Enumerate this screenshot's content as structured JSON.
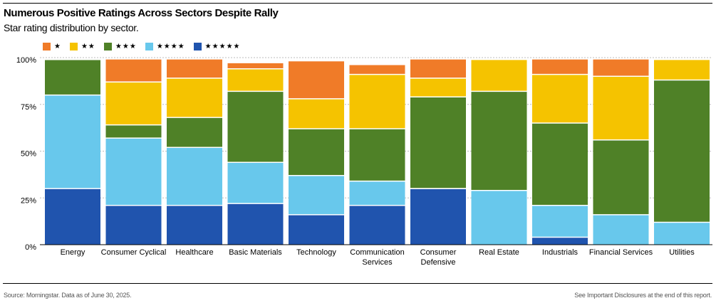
{
  "chart_data": {
    "type": "bar",
    "stacked": true,
    "title": "Numerous Positive Ratings Across Sectors Despite Rally",
    "subtitle": "Star rating distribution by sector.",
    "categories": [
      [
        "Energy"
      ],
      [
        "Consumer Cyclical"
      ],
      [
        "Healthcare"
      ],
      [
        "Basic Materials"
      ],
      [
        "Technology"
      ],
      [
        "Communication",
        "Services"
      ],
      [
        "Consumer",
        "Defensive"
      ],
      [
        "Real Estate"
      ],
      [
        "Industrials"
      ],
      [
        "Financial Services"
      ],
      [
        "Utilities"
      ]
    ],
    "series": [
      {
        "name": "★★★★★",
        "color": "#2054ae",
        "values": [
          30,
          21,
          21,
          22,
          16,
          21,
          30,
          0,
          4,
          0,
          0
        ]
      },
      {
        "name": "★★★★",
        "color": "#68c8ec",
        "values": [
          50,
          36,
          31,
          22,
          21,
          13,
          0,
          29,
          17,
          16,
          12
        ]
      },
      {
        "name": "★★★",
        "color": "#4f8127",
        "values": [
          19,
          7,
          16,
          38,
          25,
          28,
          49,
          53,
          44,
          40,
          76
        ]
      },
      {
        "name": "★★",
        "color": "#f5c300",
        "values": [
          0,
          23,
          21,
          12,
          16,
          29,
          10,
          17,
          26,
          34,
          11
        ]
      },
      {
        "name": "★",
        "color": "#f07b28",
        "values": [
          0,
          12,
          10,
          3,
          20,
          5,
          10,
          0,
          8,
          9,
          0
        ]
      }
    ],
    "legend_order": [
      "★",
      "★★",
      "★★★",
      "★★★★",
      "★★★★★"
    ],
    "ylim": [
      0,
      100
    ],
    "yticks": [
      0,
      25,
      50,
      75,
      100
    ],
    "ytick_labels": [
      "0%",
      "25%",
      "50%",
      "75%",
      "100%"
    ],
    "grid": true,
    "xlabel": "",
    "ylabel": ""
  },
  "footer": {
    "source": "Source: Morningstar. Data as of June 30, 2025.",
    "disclosure": "See Important Disclosures at the end of this report."
  }
}
